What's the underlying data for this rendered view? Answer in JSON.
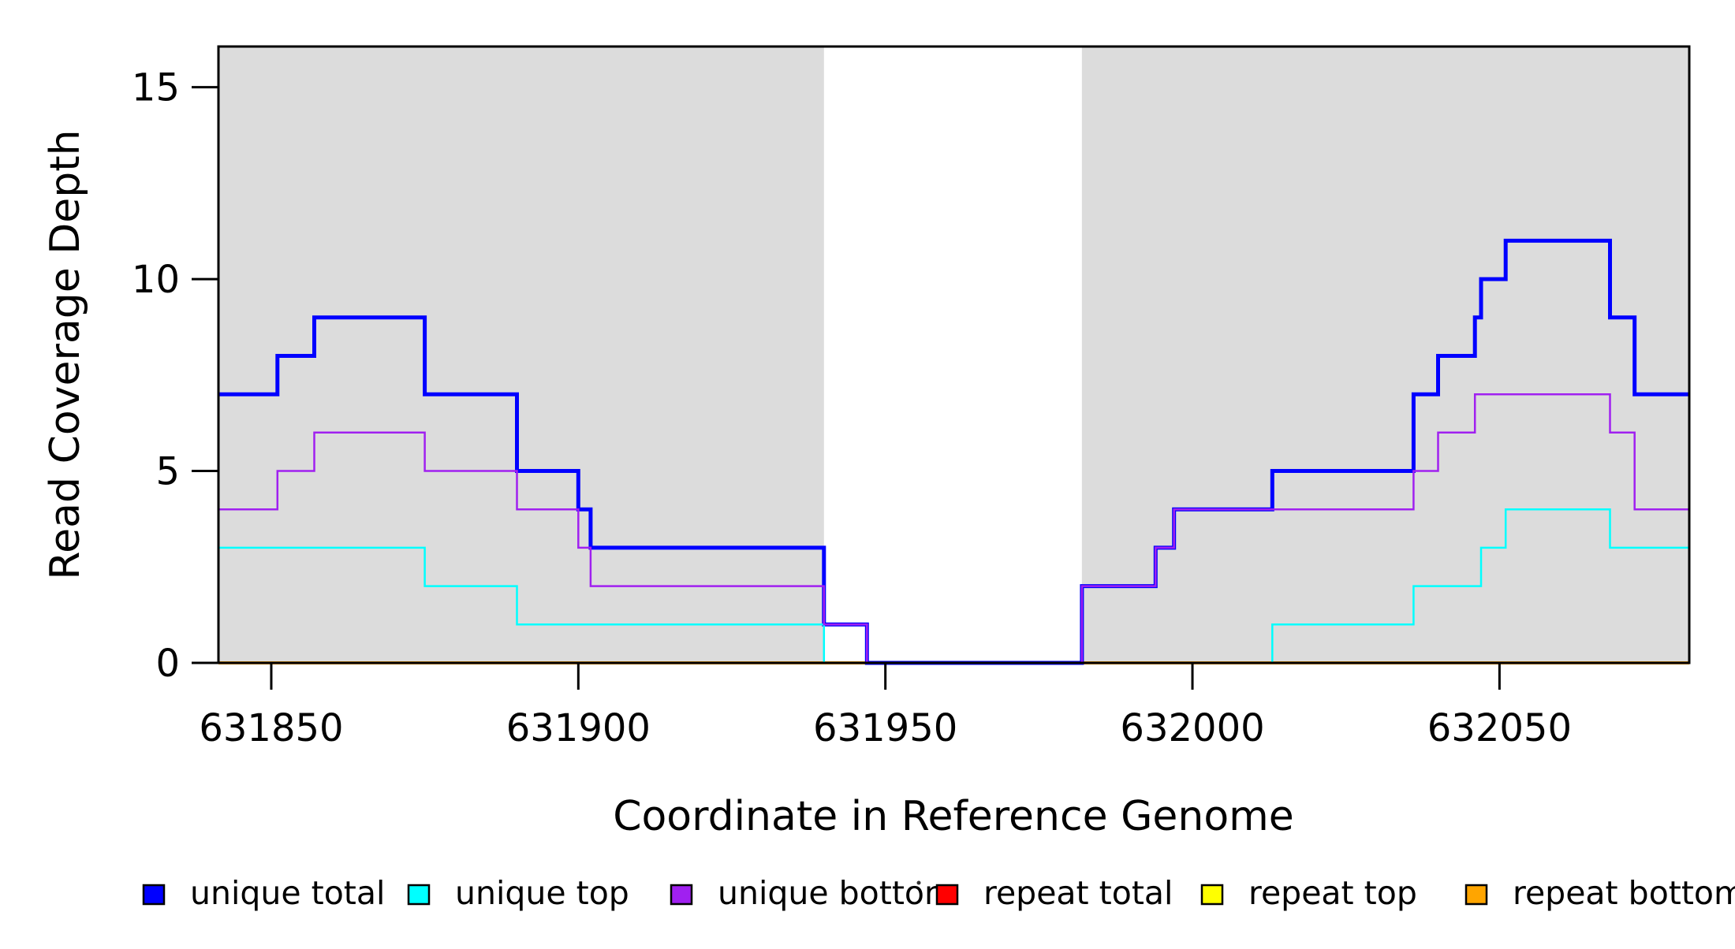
{
  "chart_data": {
    "type": "line",
    "subtype": "step",
    "title": "",
    "xlabel": "Coordinate in Reference Genome",
    "ylabel": "Read Coverage Depth",
    "xlim": [
      631841.4,
      632080.9
    ],
    "ylim": [
      0,
      16.06
    ],
    "x_ticks": [
      631850,
      631900,
      631950,
      632000,
      632050
    ],
    "y_ticks": [
      0,
      5,
      10,
      15
    ],
    "grid": false,
    "legend_position": "bottom",
    "plot_bg": "#DCDCDC",
    "background": "#FFFFFF",
    "axis_color": "#000000",
    "gap_region": [
      631940,
      631982
    ],
    "shaded_regions": [
      [
        631841.4,
        631940
      ],
      [
        631982,
        632080.9
      ]
    ],
    "series": [
      {
        "name": "repeat total",
        "color": "#FF0000",
        "width": 3,
        "points": [
          [
            631841.4,
            0
          ]
        ]
      },
      {
        "name": "repeat top",
        "color": "#FFFF00",
        "width": 3,
        "points": [
          [
            631841.4,
            0
          ]
        ]
      },
      {
        "name": "repeat bottom",
        "color": "#FFA500",
        "width": 4,
        "points": [
          [
            631841.4,
            0
          ]
        ]
      },
      {
        "name": "unique total",
        "color": "#0000FF",
        "width": 5,
        "points": [
          [
            631841.4,
            7
          ],
          [
            631851,
            8
          ],
          [
            631857,
            9
          ],
          [
            631875,
            7
          ],
          [
            631890,
            5
          ],
          [
            631900,
            4
          ],
          [
            631902,
            3
          ],
          [
            631940,
            1
          ],
          [
            631947,
            0
          ],
          [
            631982,
            2
          ],
          [
            631994,
            3
          ],
          [
            631997,
            4
          ],
          [
            632013,
            5
          ],
          [
            632036,
            7
          ],
          [
            632040,
            8
          ],
          [
            632046,
            9
          ],
          [
            632047,
            10
          ],
          [
            632051,
            11
          ],
          [
            632068,
            9
          ],
          [
            632072,
            7
          ]
        ]
      },
      {
        "name": "unique top",
        "color": "#00FFFF",
        "width": 2.5,
        "points": [
          [
            631841.4,
            3
          ],
          [
            631875,
            2
          ],
          [
            631890,
            1
          ],
          [
            631940,
            0
          ],
          [
            632013,
            1
          ],
          [
            632036,
            2
          ],
          [
            632047,
            3
          ],
          [
            632051,
            4
          ],
          [
            632068,
            3
          ]
        ]
      },
      {
        "name": "unique bottom",
        "color": "#A020F0",
        "width": 2.5,
        "points": [
          [
            631841.4,
            4
          ],
          [
            631851,
            5
          ],
          [
            631857,
            6
          ],
          [
            631875,
            5
          ],
          [
            631890,
            4
          ],
          [
            631900,
            3
          ],
          [
            631902,
            2
          ],
          [
            631940,
            1
          ],
          [
            631947,
            0
          ],
          [
            631982,
            2
          ],
          [
            631994,
            3
          ],
          [
            631997,
            4
          ],
          [
            632036,
            5
          ],
          [
            632040,
            6
          ],
          [
            632046,
            7
          ],
          [
            632068,
            6
          ],
          [
            632072,
            4
          ]
        ]
      }
    ],
    "legend": [
      {
        "label": "unique total",
        "color": "#0000FF"
      },
      {
        "label": "unique top",
        "color": "#00FFFF"
      },
      {
        "label": "unique bottom",
        "color": "#A020F0"
      },
      {
        "label": "repeat total",
        "color": "#FF0000"
      },
      {
        "label": "repeat top",
        "color": "#FFFF00"
      },
      {
        "label": "repeat bottom",
        "color": "#FFA500"
      }
    ]
  }
}
